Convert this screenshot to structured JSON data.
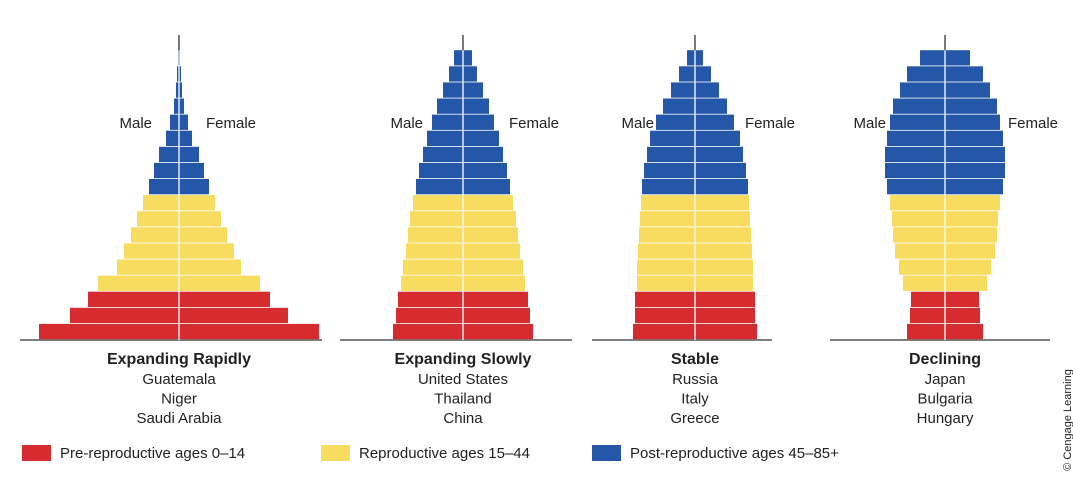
{
  "chart_data": [
    {
      "type": "pyramid",
      "title": "Expanding Rapidly",
      "countries": [
        "Guatemala",
        "Niger",
        "Saudi Arabia"
      ],
      "male_label": "Male",
      "female_label": "Female",
      "series": [
        {
          "name": "Pre-reproductive ages 0–14",
          "color": "#d62b2f",
          "values": [
            140,
            109,
            91
          ]
        },
        {
          "name": "Reproductive ages 15–44",
          "color": "#f7dc60",
          "values": [
            81,
            62,
            55,
            48,
            42,
            36
          ]
        },
        {
          "name": "Post-reproductive ages 45–85+",
          "color": "#2457a7",
          "values": [
            30,
            25,
            20,
            13,
            9,
            5,
            3,
            2,
            1
          ]
        }
      ]
    },
    {
      "type": "pyramid",
      "title": "Expanding Slowly",
      "countries": [
        "United States",
        "Thailand",
        "China"
      ],
      "male_label": "Male",
      "female_label": "Female",
      "series": [
        {
          "name": "Pre-reproductive ages 0–14",
          "color": "#d62b2f",
          "values": [
            70,
            67,
            65
          ]
        },
        {
          "name": "Reproductive ages 15–44",
          "color": "#f7dc60",
          "values": [
            62,
            60,
            57,
            55,
            53,
            50
          ]
        },
        {
          "name": "Post-reproductive ages 45–85+",
          "color": "#2457a7",
          "values": [
            47,
            44,
            40,
            36,
            31,
            26,
            20,
            14,
            9
          ]
        }
      ]
    },
    {
      "type": "pyramid",
      "title": "Stable",
      "countries": [
        "Russia",
        "Italy",
        "Greece"
      ],
      "male_label": "Male",
      "female_label": "Female",
      "series": [
        {
          "name": "Pre-reproductive ages 0–14",
          "color": "#d62b2f",
          "values": [
            62,
            60,
            60
          ]
        },
        {
          "name": "Reproductive ages 15–44",
          "color": "#f7dc60",
          "values": [
            58,
            58,
            57,
            56,
            55,
            54
          ]
        },
        {
          "name": "Post-reproductive ages 45–85+",
          "color": "#2457a7",
          "values": [
            53,
            51,
            48,
            45,
            39,
            32,
            24,
            16,
            8
          ]
        }
      ]
    },
    {
      "type": "pyramid",
      "title": "Declining",
      "countries": [
        "Japan",
        "Bulgaria",
        "Hungary"
      ],
      "male_label": "Male",
      "female_label": "Female",
      "series": [
        {
          "name": "Pre-reproductive ages 0–14",
          "color": "#d62b2f",
          "values": [
            38,
            35,
            34
          ]
        },
        {
          "name": "Reproductive ages 15–44",
          "color": "#f7dc60",
          "values": [
            42,
            46,
            50,
            52,
            53,
            55
          ]
        },
        {
          "name": "Post-reproductive ages 45–85+",
          "color": "#2457a7",
          "values": [
            58,
            60,
            60,
            58,
            55,
            52,
            45,
            38,
            25
          ]
        }
      ]
    }
  ],
  "credit": "© Cengage Learning"
}
